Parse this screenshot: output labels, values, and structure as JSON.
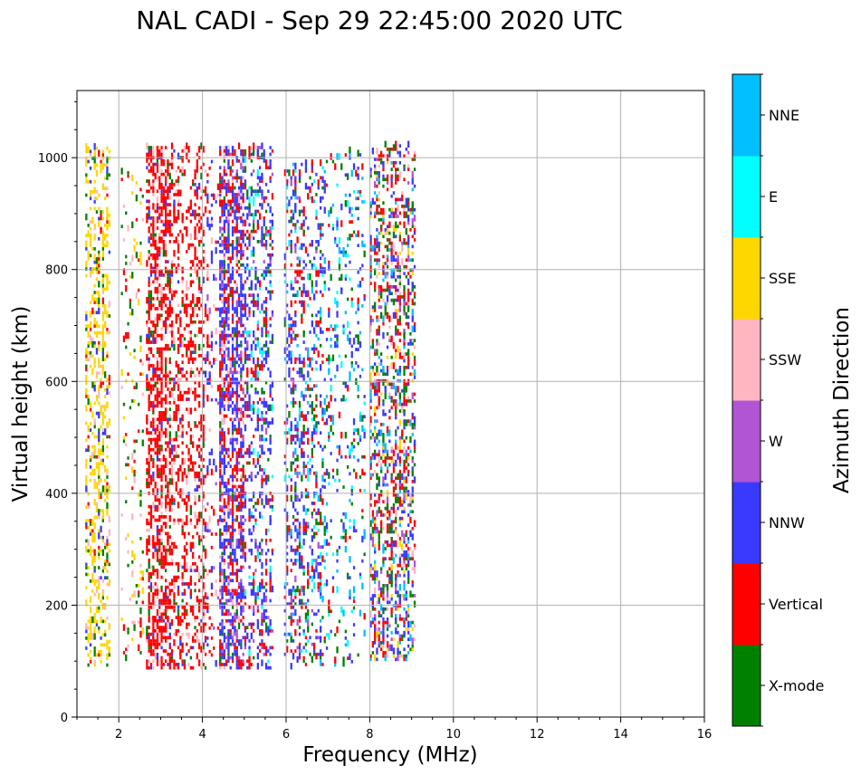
{
  "chart_data": {
    "type": "scatter",
    "title": "NAL CADI - Sep 29 22:45:00 2020 UTC",
    "xlabel": "Frequency (MHz)",
    "ylabel": "Virtual height (km)",
    "xlim": [
      1,
      16
    ],
    "ylim": [
      0,
      1120
    ],
    "x_ticks": [
      2,
      4,
      6,
      8,
      10,
      12,
      14,
      16
    ],
    "y_ticks": [
      0,
      200,
      400,
      600,
      800,
      1000
    ],
    "grid": true,
    "colorbar": {
      "label": "Azimuth Direction",
      "categories": [
        {
          "name": "X-mode",
          "color": "#008000"
        },
        {
          "name": "Vertical",
          "color": "#ff0000"
        },
        {
          "name": "NNW",
          "color": "#3a3aff"
        },
        {
          "name": "W",
          "color": "#b155d4"
        },
        {
          "name": "SSW",
          "color": "#ffb6c1"
        },
        {
          "name": "SSE",
          "color": "#ffd700"
        },
        {
          "name": "E",
          "color": "#00ffff"
        },
        {
          "name": "NNE",
          "color": "#00bfff"
        }
      ]
    },
    "echo_bands": [
      {
        "f_min": 1.2,
        "f_max": 1.8,
        "h_min": 90,
        "h_max": 1020,
        "density": 0.28,
        "weights": {
          "SSE": 0.6,
          "X-mode": 0.15,
          "SSW": 0.1,
          "Vertical": 0.08,
          "NNW": 0.07
        }
      },
      {
        "f_min": 2.05,
        "f_max": 2.6,
        "h_min": 100,
        "h_max": 980,
        "density": 0.08,
        "weights": {
          "SSE": 0.3,
          "X-mode": 0.3,
          "Vertical": 0.25,
          "SSW": 0.15
        }
      },
      {
        "f_min": 2.65,
        "f_max": 3.3,
        "h_min": 85,
        "h_max": 1020,
        "density": 0.42,
        "weights": {
          "Vertical": 0.75,
          "SSW": 0.1,
          "X-mode": 0.08,
          "NNW": 0.07
        }
      },
      {
        "f_min": 3.3,
        "f_max": 4.1,
        "h_min": 85,
        "h_max": 1020,
        "density": 0.26,
        "weights": {
          "Vertical": 0.7,
          "SSW": 0.15,
          "NNW": 0.08,
          "X-mode": 0.07
        }
      },
      {
        "f_min": 4.1,
        "f_max": 4.5,
        "h_min": 90,
        "h_max": 1000,
        "density": 0.12,
        "weights": {
          "Vertical": 0.4,
          "NNW": 0.3,
          "SSW": 0.15,
          "W": 0.15
        }
      },
      {
        "f_min": 4.4,
        "f_max": 5.0,
        "h_min": 85,
        "h_max": 1020,
        "density": 0.48,
        "weights": {
          "NNW": 0.45,
          "Vertical": 0.3,
          "W": 0.12,
          "SSW": 0.08,
          "X-mode": 0.05
        }
      },
      {
        "f_min": 5.0,
        "f_max": 5.7,
        "h_min": 85,
        "h_max": 1020,
        "density": 0.28,
        "weights": {
          "NNW": 0.45,
          "Vertical": 0.25,
          "W": 0.1,
          "X-mode": 0.1,
          "E": 0.1
        }
      },
      {
        "f_min": 5.95,
        "f_max": 6.9,
        "h_min": 85,
        "h_max": 990,
        "density": 0.24,
        "weights": {
          "NNW": 0.35,
          "Vertical": 0.25,
          "X-mode": 0.15,
          "E": 0.1,
          "NNE": 0.08,
          "W": 0.07
        }
      },
      {
        "f_min": 6.9,
        "f_max": 7.9,
        "h_min": 90,
        "h_max": 1010,
        "density": 0.12,
        "weights": {
          "NNW": 0.3,
          "NNE": 0.2,
          "X-mode": 0.2,
          "E": 0.15,
          "Vertical": 0.15
        }
      },
      {
        "f_min": 8.0,
        "f_max": 9.1,
        "h_min": 100,
        "h_max": 1020,
        "density": 0.32,
        "weights": {
          "Vertical": 0.25,
          "X-mode": 0.2,
          "NNW": 0.2,
          "W": 0.1,
          "NNE": 0.1,
          "SSW": 0.08,
          "SSE": 0.07
        }
      }
    ]
  }
}
